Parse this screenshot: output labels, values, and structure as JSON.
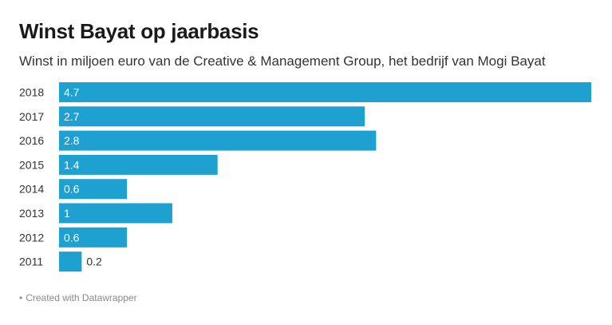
{
  "title": "Winst Bayat op jaarbasis",
  "subtitle": "Winst in miljoen euro van de Creative & Management Group, het bedrijf van Mogi Bayat",
  "footer": {
    "bullet": "•",
    "text": "Created with Datawrapper"
  },
  "colors": {
    "bar": "#1ea0d0",
    "label_inside": "#ffffff",
    "label_outside": "#333333",
    "category": "#333333"
  },
  "chart_data": {
    "type": "bar",
    "orientation": "horizontal",
    "categories": [
      "2018",
      "2017",
      "2016",
      "2015",
      "2014",
      "2013",
      "2012",
      "2011"
    ],
    "values": [
      4.7,
      2.7,
      2.8,
      1.4,
      0.6,
      1,
      0.6,
      0.2
    ],
    "value_labels": [
      "4.7",
      "2.7",
      "2.8",
      "1.4",
      "0.6",
      "1",
      "0.6",
      "0.2"
    ],
    "title": "Winst Bayat op jaarbasis",
    "xlim": [
      0,
      4.7
    ],
    "grid": false,
    "legend": "none"
  }
}
